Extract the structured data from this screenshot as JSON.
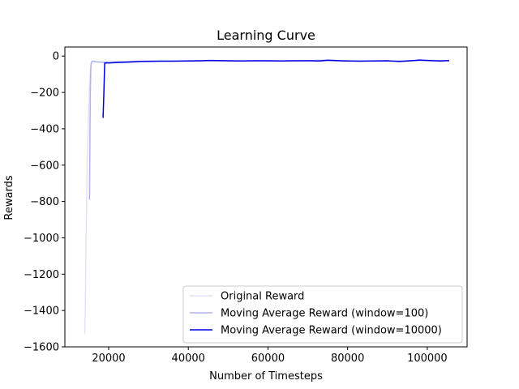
{
  "chart_data": {
    "type": "line",
    "title": "Learning Curve",
    "xlabel": "Number of Timesteps",
    "ylabel": "Rewards",
    "xlim": [
      9000,
      110000
    ],
    "ylim": [
      -1600,
      50
    ],
    "x_ticks": [
      20000,
      40000,
      60000,
      80000,
      100000
    ],
    "x_tick_labels": [
      "20000",
      "40000",
      "60000",
      "80000",
      "100000"
    ],
    "y_ticks": [
      0,
      -200,
      -400,
      -600,
      -800,
      -1000,
      -1200,
      -1400,
      -1600
    ],
    "y_tick_labels": [
      "0",
      "−200",
      "−400",
      "−600",
      "−800",
      "−1000",
      "−1200",
      "−1400",
      "−1600"
    ],
    "grid": false,
    "legend_position": "lower-right",
    "series": [
      {
        "name": "Original Reward",
        "color": "#e3e3f7",
        "x": [
          14000,
          14150,
          14300,
          14450,
          14600,
          14750,
          14900,
          15000,
          15200,
          15400,
          15600,
          15800,
          16000,
          17000,
          18000,
          20000,
          30000,
          40000,
          50000,
          60000,
          70000,
          80000,
          90000,
          100000,
          105500
        ],
        "y": [
          -1530,
          -1350,
          -1050,
          -800,
          -620,
          -470,
          -350,
          -260,
          -150,
          -80,
          -40,
          -30,
          -28,
          -30,
          -32,
          -30,
          -28,
          -27,
          -26,
          -27,
          -25,
          -26,
          -27,
          -24,
          -25
        ]
      },
      {
        "name": "Moving Average Reward (window=100)",
        "color": "#b3b3ee",
        "x": [
          15200,
          15300,
          15400,
          15500,
          15600,
          15800,
          16000,
          16500,
          17000,
          18000,
          19000,
          20000,
          25000,
          30000,
          35000,
          40000,
          45000,
          50000,
          55000,
          60000,
          65000,
          70000,
          75000,
          80000,
          85000,
          90000,
          95000,
          100000,
          105500
        ],
        "y": [
          -790,
          -450,
          -200,
          -80,
          -40,
          -30,
          -28,
          -30,
          -32,
          -33,
          -35,
          -36,
          -30,
          -27,
          -27,
          -26,
          -25,
          -26,
          -27,
          -26,
          -27,
          -25,
          -22,
          -26,
          -27,
          -28,
          -26,
          -23,
          -26
        ]
      },
      {
        "name": "Moving Average Reward (window=10000)",
        "color": "#0000e6",
        "x": [
          18600,
          18800,
          19000,
          19500,
          20000,
          22000,
          25000,
          28000,
          30000,
          33000,
          36000,
          40000,
          43000,
          46000,
          50000,
          53000,
          56000,
          60000,
          63000,
          66000,
          70000,
          73000,
          75000,
          78000,
          80000,
          83000,
          86000,
          90000,
          93000,
          95000,
          98000,
          100000,
          103000,
          105500
        ],
        "y": [
          -340,
          -200,
          -38,
          -37,
          -38,
          -35,
          -33,
          -30,
          -29,
          -28,
          -28,
          -27,
          -26,
          -24,
          -26,
          -27,
          -26,
          -26,
          -27,
          -26,
          -26,
          -27,
          -23,
          -26,
          -27,
          -28,
          -27,
          -26,
          -30,
          -27,
          -22,
          -24,
          -27,
          -25
        ]
      }
    ]
  }
}
